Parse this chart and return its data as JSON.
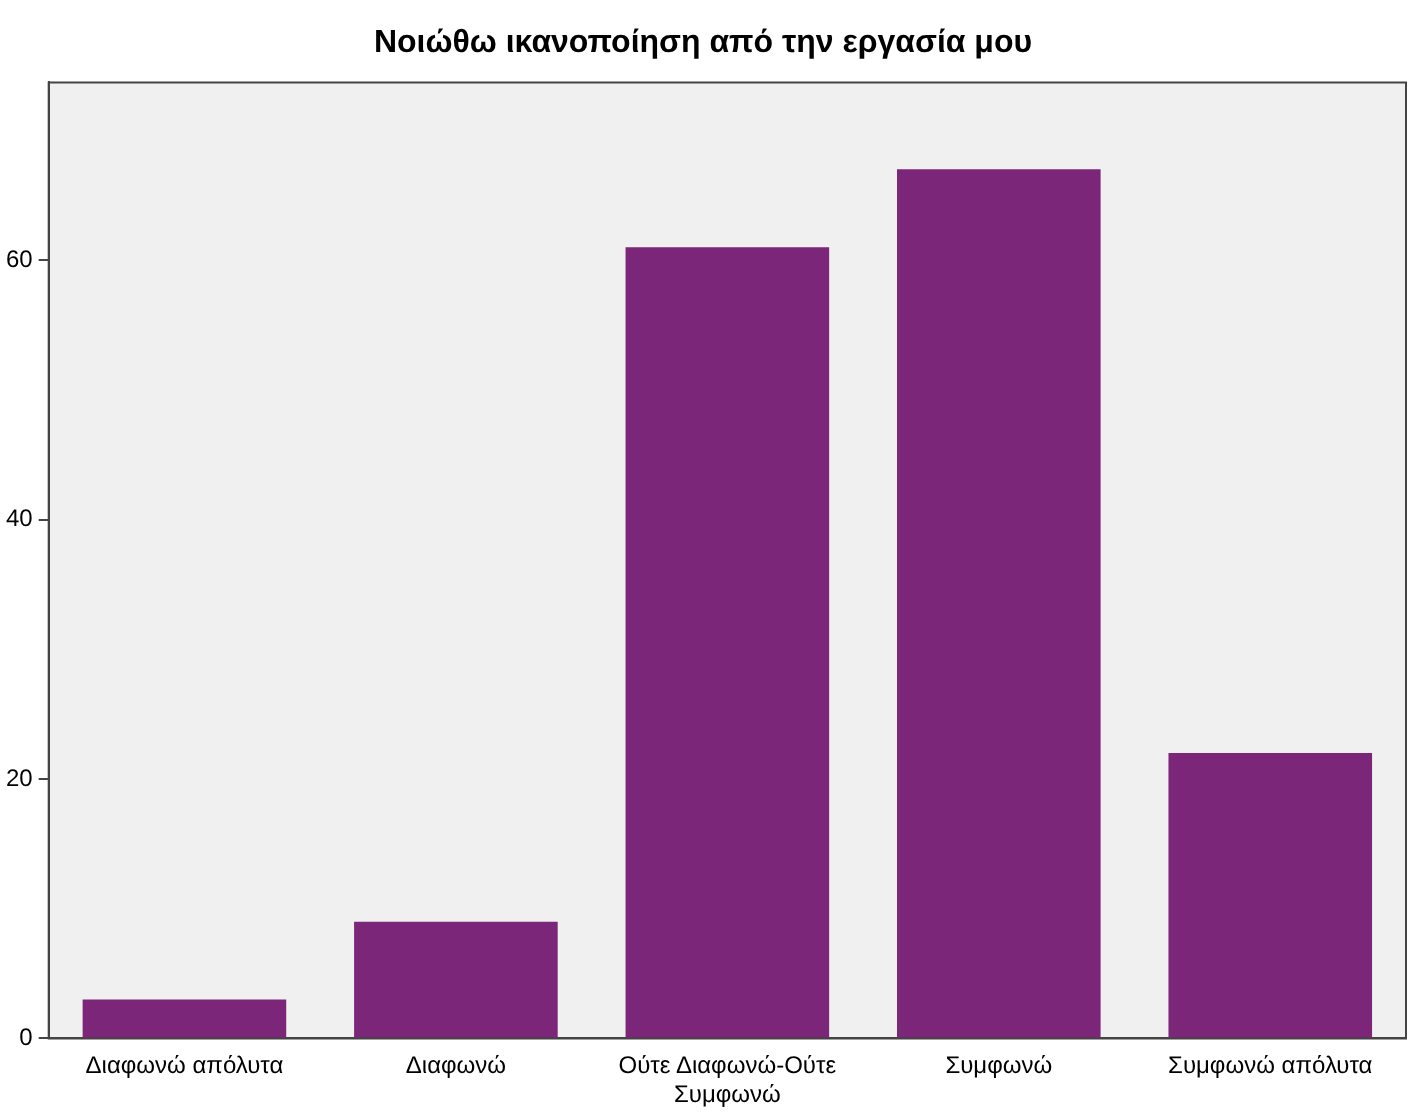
{
  "chart_data": {
    "type": "bar",
    "title": "Νοιώθω ικανοποίηση από την εργασία μου",
    "categories": [
      "Διαφωνώ απόλυτα",
      "Διαφωνώ",
      "Ούτε Διαφωνώ-Ούτε Συμφωνώ",
      "Συμφωνώ",
      "Συμφωνώ απόλυτα"
    ],
    "values": [
      3,
      9,
      61,
      67,
      22
    ],
    "color": "#7b2678",
    "ylim": [
      0,
      73.7
    ],
    "yticks": [
      0,
      20,
      40,
      60
    ],
    "grid": false,
    "legend": false
  }
}
